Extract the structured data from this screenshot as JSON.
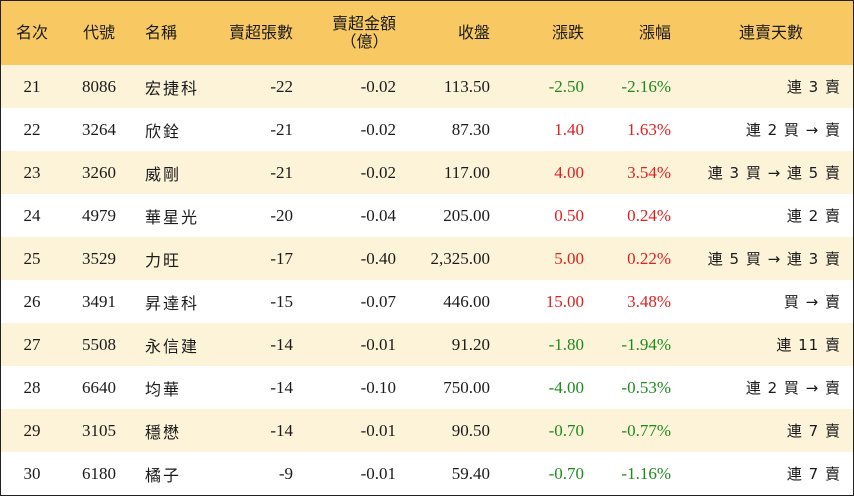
{
  "headers": {
    "rank": "名次",
    "code": "代號",
    "name": "名稱",
    "sell_lots": "賣超張數",
    "sell_amount_line1": "賣超金額",
    "sell_amount_line2": "（億）",
    "close": "收盤",
    "change": "漲跌",
    "pct": "漲幅",
    "streak": "連賣天數"
  },
  "colors": {
    "header_bg": "#f8c963",
    "stripe_bg": "#fdf3d9",
    "up": "#e02020",
    "down": "#1e8a1e"
  },
  "rows": [
    {
      "rank": "21",
      "code": "8086",
      "name": "宏捷科",
      "lots": "-22",
      "amount": "-0.02",
      "close": "113.50",
      "change": "-2.50",
      "pct": "-2.16%",
      "dir": "down",
      "streak": "連 3 賣"
    },
    {
      "rank": "22",
      "code": "3264",
      "name": "欣銓",
      "lots": "-21",
      "amount": "-0.02",
      "close": "87.30",
      "change": "1.40",
      "pct": "1.63%",
      "dir": "up",
      "streak": "連 2 買 → 賣"
    },
    {
      "rank": "23",
      "code": "3260",
      "name": "威剛",
      "lots": "-21",
      "amount": "-0.02",
      "close": "117.00",
      "change": "4.00",
      "pct": "3.54%",
      "dir": "up",
      "streak": "連 3 買 → 連 5 賣"
    },
    {
      "rank": "24",
      "code": "4979",
      "name": "華星光",
      "lots": "-20",
      "amount": "-0.04",
      "close": "205.00",
      "change": "0.50",
      "pct": "0.24%",
      "dir": "up",
      "streak": "連 2 賣"
    },
    {
      "rank": "25",
      "code": "3529",
      "name": "力旺",
      "lots": "-17",
      "amount": "-0.40",
      "close": "2,325.00",
      "change": "5.00",
      "pct": "0.22%",
      "dir": "up",
      "streak": "連 5 買 → 連 3 賣"
    },
    {
      "rank": "26",
      "code": "3491",
      "name": "昇達科",
      "lots": "-15",
      "amount": "-0.07",
      "close": "446.00",
      "change": "15.00",
      "pct": "3.48%",
      "dir": "up",
      "streak": "買 → 賣"
    },
    {
      "rank": "27",
      "code": "5508",
      "name": "永信建",
      "lots": "-14",
      "amount": "-0.01",
      "close": "91.20",
      "change": "-1.80",
      "pct": "-1.94%",
      "dir": "down",
      "streak": "連 11 賣"
    },
    {
      "rank": "28",
      "code": "6640",
      "name": "均華",
      "lots": "-14",
      "amount": "-0.10",
      "close": "750.00",
      "change": "-4.00",
      "pct": "-0.53%",
      "dir": "down",
      "streak": "連 2 買 → 賣"
    },
    {
      "rank": "29",
      "code": "3105",
      "name": "穩懋",
      "lots": "-14",
      "amount": "-0.01",
      "close": "90.50",
      "change": "-0.70",
      "pct": "-0.77%",
      "dir": "down",
      "streak": "連 7 賣"
    },
    {
      "rank": "30",
      "code": "6180",
      "name": "橘子",
      "lots": "-9",
      "amount": "-0.01",
      "close": "59.40",
      "change": "-0.70",
      "pct": "-1.16%",
      "dir": "down",
      "streak": "連 7 賣"
    }
  ]
}
